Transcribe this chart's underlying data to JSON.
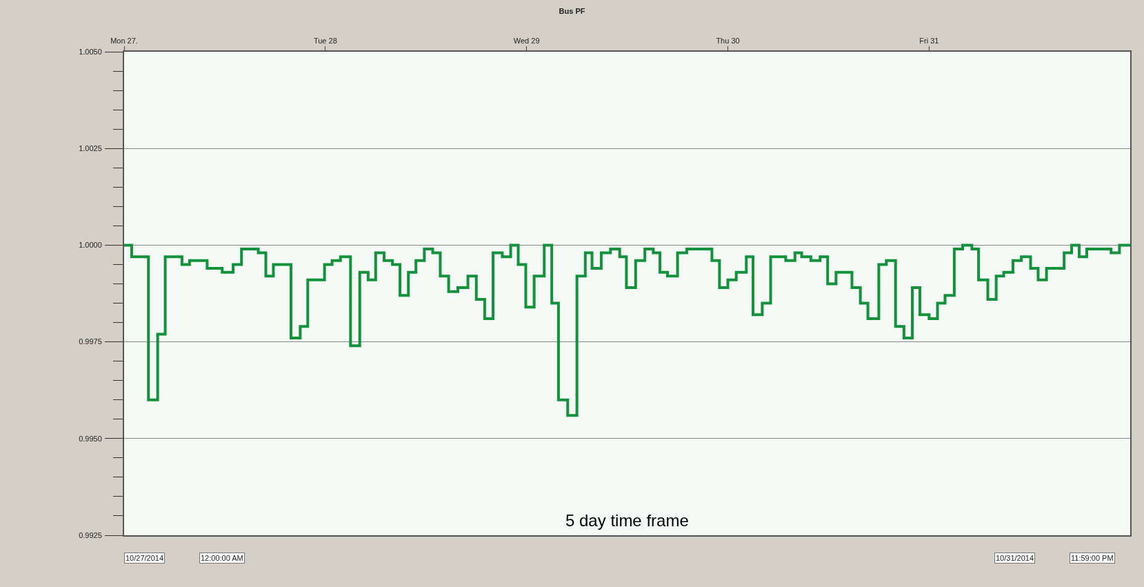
{
  "chart_data": {
    "type": "step",
    "title": "Bus PF",
    "annotations": [
      "5 day time frame",
      "10/27/2014",
      "12:00:00 AM",
      "10/31/2014",
      "11:59:00 PM"
    ],
    "x": [
      "2014-10-27T00:00",
      "2014-10-27T00:54",
      "2014-10-27T02:54",
      "2014-10-27T04:00",
      "2014-10-27T04:54",
      "2014-10-27T06:54",
      "2014-10-27T07:48",
      "2014-10-27T09:54",
      "2014-10-27T11:42",
      "2014-10-27T13:00",
      "2014-10-27T14:00",
      "2014-10-27T16:00",
      "2014-10-27T16:54",
      "2014-10-27T17:48",
      "2014-10-27T19:54",
      "2014-10-27T21:00",
      "2014-10-27T21:54",
      "2014-10-27T23:54",
      "2014-10-28T00:48",
      "2014-10-28T01:48",
      "2014-10-28T03:00",
      "2014-10-28T04:06",
      "2014-10-28T05:06",
      "2014-10-28T06:00",
      "2014-10-28T07:00",
      "2014-10-28T08:00",
      "2014-10-28T08:54",
      "2014-10-28T09:54",
      "2014-10-28T10:48",
      "2014-10-28T11:48",
      "2014-10-28T12:48",
      "2014-10-28T13:42",
      "2014-10-28T14:42",
      "2014-10-28T15:48",
      "2014-10-28T17:00",
      "2014-10-28T18:00",
      "2014-10-28T19:00",
      "2014-10-28T20:00",
      "2014-10-28T21:06",
      "2014-10-28T22:06",
      "2014-10-28T23:00",
      "2014-10-28T23:54",
      "2014-10-29T00:54",
      "2014-10-29T02:06",
      "2014-10-29T03:00",
      "2014-10-29T03:48",
      "2014-10-29T04:54",
      "2014-10-29T06:00",
      "2014-10-29T07:00",
      "2014-10-29T07:48",
      "2014-10-29T08:54",
      "2014-10-29T10:00",
      "2014-10-29T11:06",
      "2014-10-29T11:54",
      "2014-10-29T13:00",
      "2014-10-29T14:06",
      "2014-10-29T15:06",
      "2014-10-29T15:54",
      "2014-10-29T16:48",
      "2014-10-29T18:00",
      "2014-10-29T19:06",
      "2014-10-29T22:06",
      "2014-10-29T23:00",
      "2014-10-30T00:00",
      "2014-10-30T01:00",
      "2014-10-30T02:12",
      "2014-10-30T03:00",
      "2014-10-30T04:06",
      "2014-10-30T05:06",
      "2014-10-30T06:54",
      "2014-10-30T08:00",
      "2014-10-30T08:48",
      "2014-10-30T09:54",
      "2014-10-30T11:00",
      "2014-10-30T11:54",
      "2014-10-30T12:54",
      "2014-10-30T14:48",
      "2014-10-30T15:48",
      "2014-10-30T16:42",
      "2014-10-30T18:00",
      "2014-10-30T18:54",
      "2014-10-30T20:00",
      "2014-10-30T21:00",
      "2014-10-30T22:00",
      "2014-10-30T22:54",
      "2014-10-31T00:00",
      "2014-10-31T01:00",
      "2014-10-31T01:54",
      "2014-10-31T03:00",
      "2014-10-31T04:00",
      "2014-10-31T05:06",
      "2014-10-31T05:54",
      "2014-10-31T07:00",
      "2014-10-31T08:00",
      "2014-10-31T08:54",
      "2014-10-31T10:00",
      "2014-10-31T11:00",
      "2014-10-31T12:06",
      "2014-10-31T13:00",
      "2014-10-31T14:00",
      "2014-10-31T14:54",
      "2014-10-31T16:06",
      "2014-10-31T17:00",
      "2014-10-31T17:54",
      "2014-10-31T18:48",
      "2014-10-31T21:42",
      "2014-10-31T22:42",
      "2014-10-31T23:59"
    ],
    "series": [
      {
        "color": "#13923c",
        "values": [
          1.0,
          0.9997,
          0.996,
          0.9977,
          0.9997,
          0.9995,
          0.9996,
          0.9994,
          0.9993,
          0.9995,
          0.9999,
          0.9998,
          0.9992,
          0.9995,
          0.9976,
          0.9979,
          0.9991,
          0.9995,
          0.9996,
          0.9997,
          0.9974,
          0.9993,
          0.9991,
          0.9998,
          0.9996,
          0.9995,
          0.9987,
          0.9993,
          0.9996,
          0.9999,
          0.9998,
          0.9992,
          0.9988,
          0.9989,
          0.9992,
          0.9986,
          0.9981,
          0.9998,
          0.9997,
          1.0,
          0.9995,
          0.9984,
          0.9992,
          1.0,
          0.9985,
          0.996,
          0.9956,
          0.9992,
          0.9998,
          0.9994,
          0.9998,
          0.9999,
          0.9997,
          0.9989,
          0.9996,
          0.9999,
          0.9998,
          0.9993,
          0.9992,
          0.9998,
          0.9999,
          0.9996,
          0.9989,
          0.9991,
          0.9993,
          0.9997,
          0.9982,
          0.9985,
          0.9997,
          0.9996,
          0.9998,
          0.9997,
          0.9996,
          0.9997,
          0.999,
          0.9993,
          0.9989,
          0.9985,
          0.9981,
          0.9995,
          0.9996,
          0.9979,
          0.9976,
          0.9989,
          0.9982,
          0.9981,
          0.9985,
          0.9987,
          0.9999,
          1.0,
          0.9999,
          0.9991,
          0.9986,
          0.9992,
          0.9993,
          0.9996,
          0.9997,
          0.9994,
          0.9991,
          0.9994,
          0.9994,
          0.9998,
          1.0,
          0.9997,
          0.9999,
          0.9998,
          1.0,
          1.0
        ]
      }
    ],
    "xlim": [
      "2014-10-27T00:00",
      "2014-10-31T23:59"
    ],
    "xticks": [
      {
        "value": "2014-10-27",
        "label": "Mon 27."
      },
      {
        "value": "2014-10-28",
        "label": "Tue 28"
      },
      {
        "value": "2014-10-29",
        "label": "Wed 29"
      },
      {
        "value": "2014-10-30",
        "label": "Thu 30"
      },
      {
        "value": "2014-10-31",
        "label": "Fri 31"
      }
    ],
    "ylim": [
      0.9925,
      1.005
    ],
    "yticks": [
      {
        "value": 0.9925,
        "label": "0.9925"
      },
      {
        "value": 0.993,
        "label": null
      },
      {
        "value": 0.9935,
        "label": null
      },
      {
        "value": 0.994,
        "label": null
      },
      {
        "value": 0.9945,
        "label": null
      },
      {
        "value": 0.995,
        "label": "0.9950"
      },
      {
        "value": 0.9955,
        "label": null
      },
      {
        "value": 0.996,
        "label": null
      },
      {
        "value": 0.9965,
        "label": null
      },
      {
        "value": 0.997,
        "label": null
      },
      {
        "value": 0.9975,
        "label": "0.9975"
      },
      {
        "value": 0.998,
        "label": null
      },
      {
        "value": 0.9985,
        "label": null
      },
      {
        "value": 0.999,
        "label": null
      },
      {
        "value": 0.9995,
        "label": null
      },
      {
        "value": 1.0,
        "label": "1.0000"
      },
      {
        "value": 1.0005,
        "label": null
      },
      {
        "value": 1.001,
        "label": null
      },
      {
        "value": 1.0015,
        "label": null
      },
      {
        "value": 1.002,
        "label": null
      },
      {
        "value": 1.0025,
        "label": "1.0025"
      },
      {
        "value": 1.003,
        "label": null
      },
      {
        "value": 1.0035,
        "label": null
      },
      {
        "value": 1.004,
        "label": null
      },
      {
        "value": 1.0045,
        "label": null
      },
      {
        "value": 1.005,
        "label": "1.0050"
      }
    ],
    "grid": "y",
    "legend": false,
    "marker": "none",
    "line_style": "solid"
  }
}
